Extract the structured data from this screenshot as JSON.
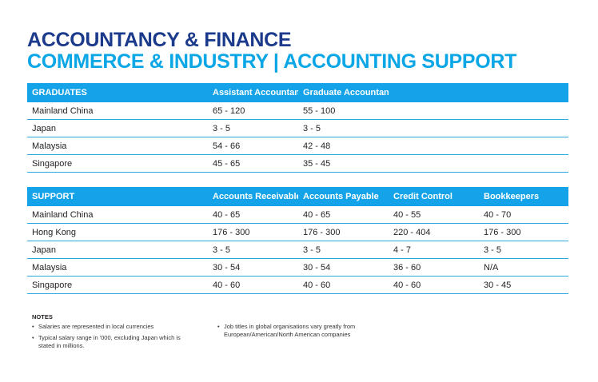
{
  "title_line1": "ACCOUNTANCY & FINANCE",
  "title_line2": "COMMERCE & INDUSTRY | ACCOUNTING SUPPORT",
  "colors": {
    "navy_title": "#1b3a8c",
    "cyan_title": "#0aa6e6",
    "header_bg": "#14a3e8",
    "row_rule": "#2aa8e0"
  },
  "graduates": {
    "headers": [
      "GRADUATES",
      "Assistant Accountant",
      "Graduate Accountant"
    ],
    "rows": [
      [
        "Mainland China",
        "65 - 120",
        "55 - 100"
      ],
      [
        "Japan",
        "3 - 5",
        "3 - 5"
      ],
      [
        "Malaysia",
        "54 - 66",
        "42 - 48"
      ],
      [
        "Singapore",
        "45 - 65",
        "35 - 45"
      ]
    ]
  },
  "support": {
    "headers": [
      "SUPPORT",
      "Accounts Receivable",
      "Accounts Payable",
      "Credit Control",
      "Bookkeepers"
    ],
    "rows": [
      [
        "Mainland China",
        "40 - 65",
        "40 - 65",
        "40 - 55",
        "40 - 70"
      ],
      [
        "Hong Kong",
        "176 - 300",
        "176 - 300",
        "220 - 404",
        "176 - 300"
      ],
      [
        "Japan",
        "3 - 5",
        "3 - 5",
        "4 - 7",
        "3 - 5"
      ],
      [
        "Malaysia",
        "30 - 54",
        "30 - 54",
        "36 - 60",
        "N/A"
      ],
      [
        "Singapore",
        "40 - 60",
        "40 - 60",
        "40 - 60",
        "30 - 45"
      ]
    ]
  },
  "notes": {
    "title": "NOTES",
    "bullet": "•",
    "left": [
      "Salaries are represented in local currencies",
      "Typical salary range in '000, excluding Japan which is stated in millions."
    ],
    "right": [
      "Job titles in global organisations vary greatly from European/American/North American companies"
    ]
  }
}
